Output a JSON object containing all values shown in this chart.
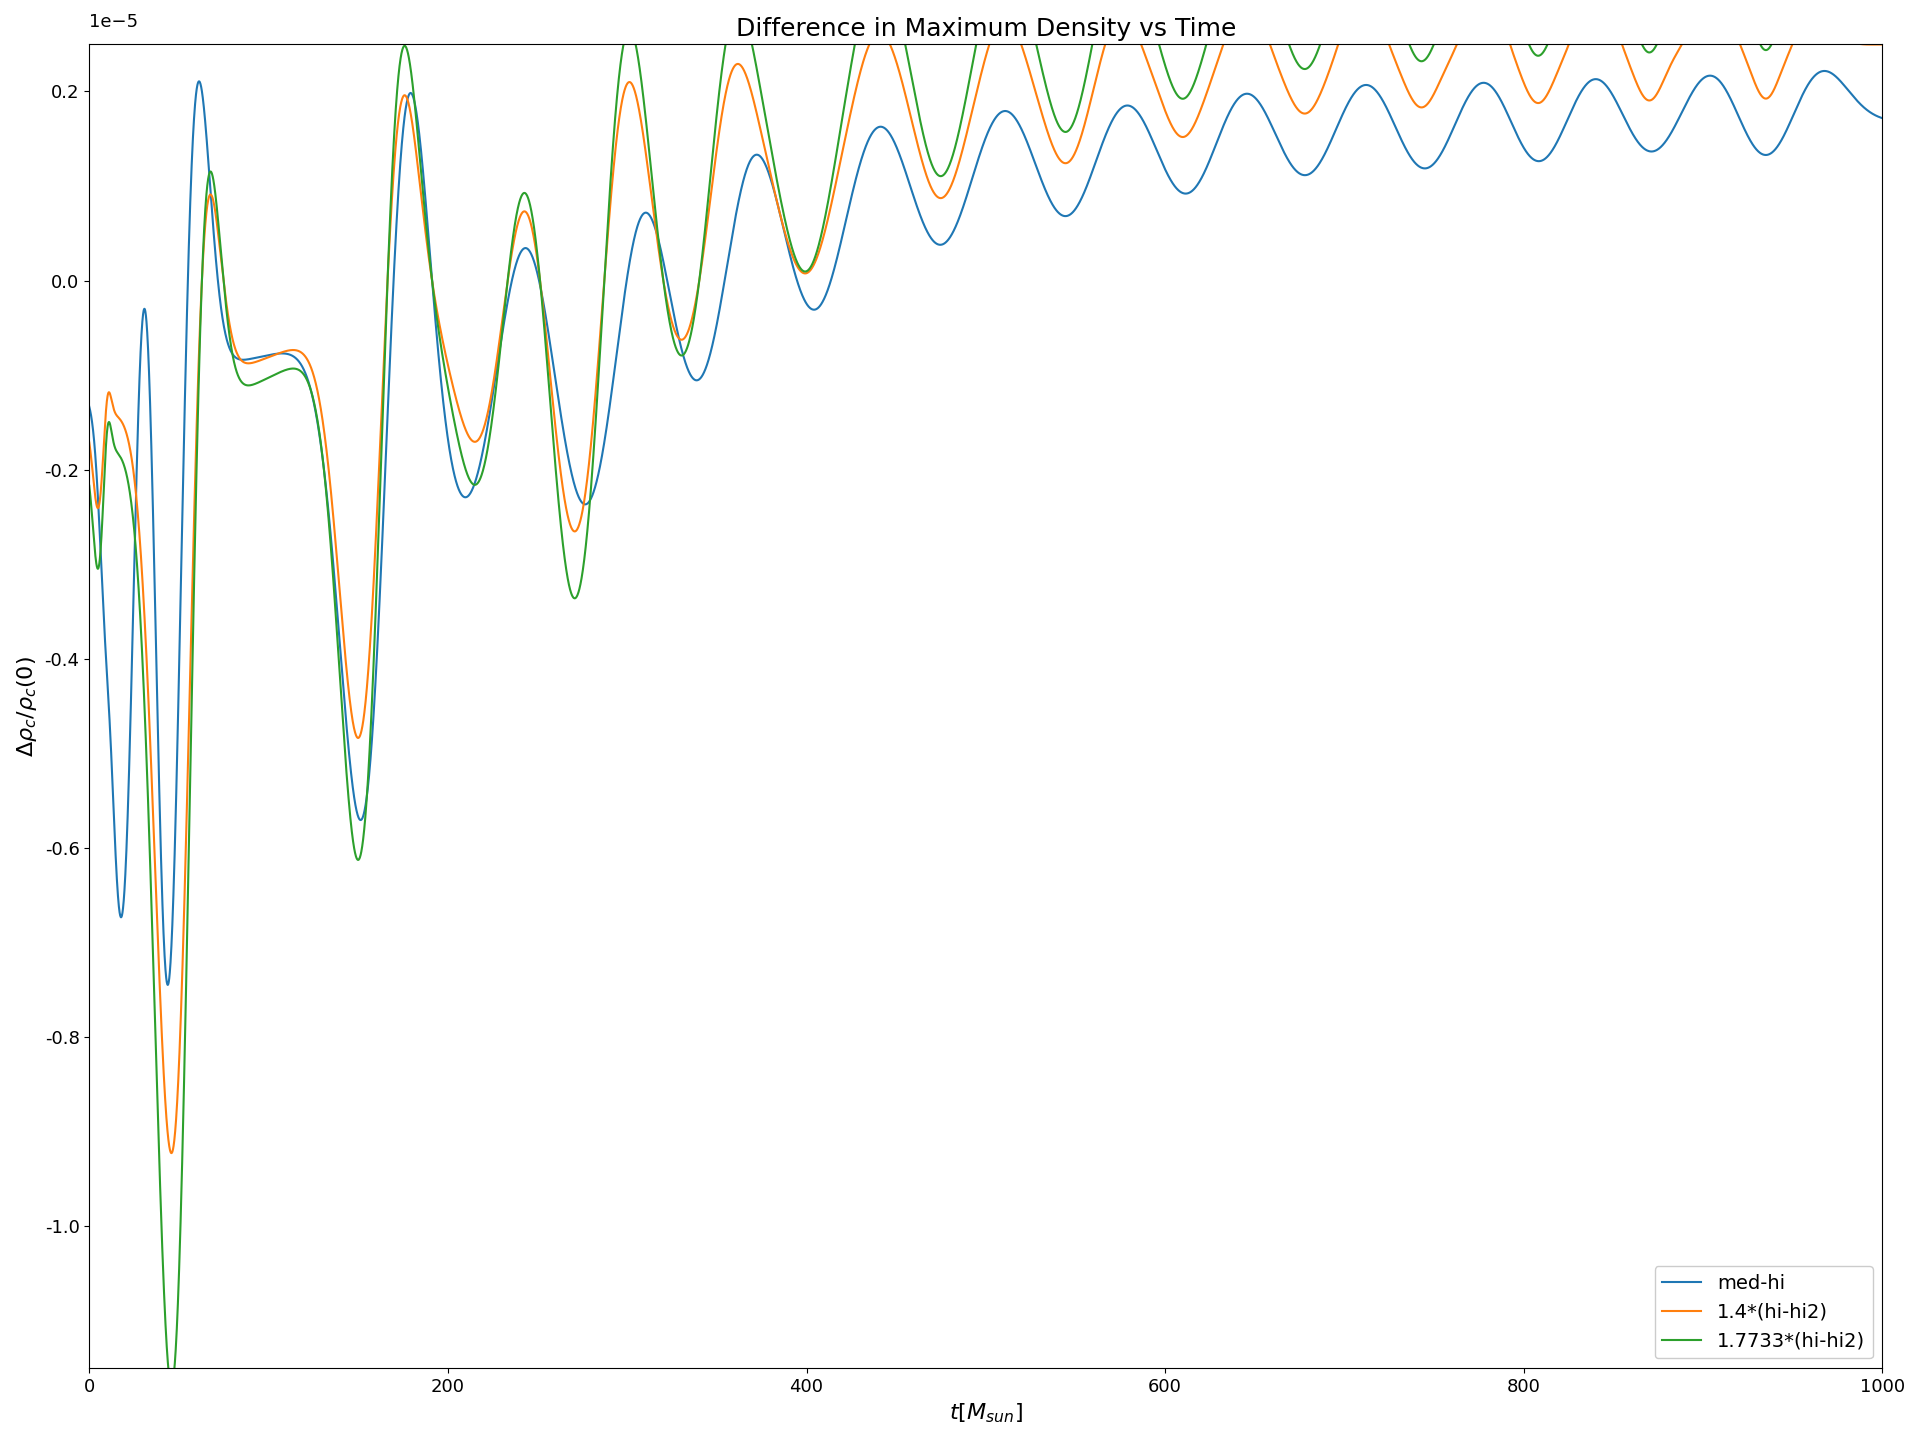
{
  "title": "Difference in Maximum Density vs Time",
  "xlabel": "$t[M_{sun}]$",
  "ylabel": "$\\Delta\\rho_c/\\rho_c(0)$",
  "xlim": [
    0,
    1000
  ],
  "ylim_raw": [
    -1.15,
    0.25
  ],
  "scale_factor": 1e-05,
  "ytick_vals": [
    0.2,
    0.0,
    -0.2,
    -0.4,
    -0.6,
    -0.8,
    -1.0
  ],
  "xtick_vals": [
    0,
    200,
    400,
    600,
    800,
    1000
  ],
  "legend": [
    "med-hi",
    "1.4*(hi-hi2)",
    "1.7733*(hi-hi2)"
  ],
  "colors": [
    "#1f77b4",
    "#ff7f0e",
    "#2ca02c"
  ],
  "linewidth": 1.5,
  "legend_loc": "lower right",
  "title_fontsize": 18,
  "label_fontsize": 16,
  "tick_fontsize": 13,
  "legend_fontsize": 14
}
